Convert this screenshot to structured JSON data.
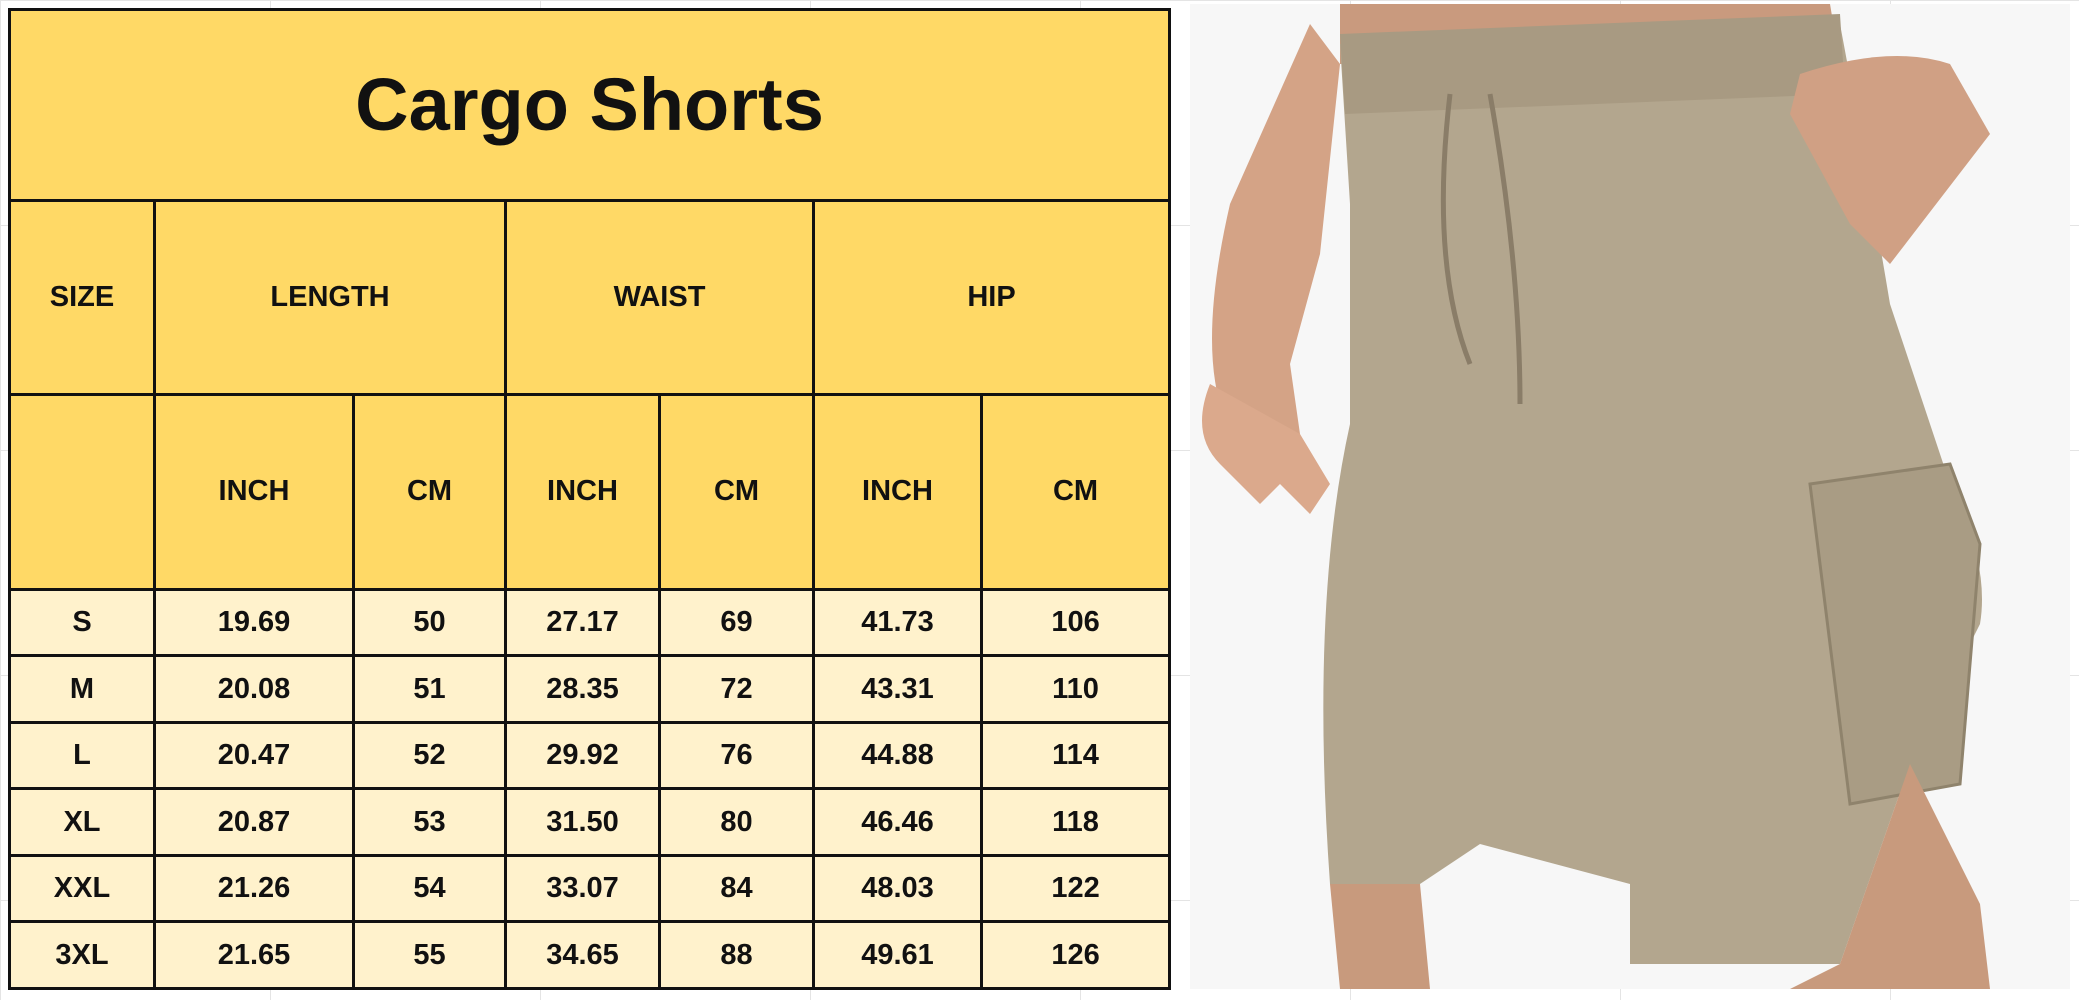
{
  "title": "Cargo Shorts",
  "headers": {
    "size": "SIZE",
    "groups": [
      "LENGTH",
      "WAIST",
      "HIP"
    ],
    "units": [
      "INCH",
      "CM",
      "INCH",
      "CM",
      "INCH",
      "CM"
    ]
  },
  "rows": [
    {
      "size": "S",
      "values": [
        "19.69",
        "50",
        "27.17",
        "69",
        "41.73",
        "106"
      ]
    },
    {
      "size": "M",
      "values": [
        "20.08",
        "51",
        "28.35",
        "72",
        "43.31",
        "110"
      ]
    },
    {
      "size": "L",
      "values": [
        "20.47",
        "52",
        "29.92",
        "76",
        "44.88",
        "114"
      ]
    },
    {
      "size": "XL",
      "values": [
        "20.87",
        "53",
        "31.50",
        "80",
        "46.46",
        "118"
      ]
    },
    {
      "size": "XXL",
      "values": [
        "21.26",
        "54",
        "33.07",
        "84",
        "48.03",
        "122"
      ]
    },
    {
      "size": "3XL",
      "values": [
        "21.65",
        "55",
        "34.65",
        "88",
        "49.61",
        "126"
      ]
    }
  ],
  "colors": {
    "header": "#FFD966",
    "body": "#FFF2CC",
    "shorts": "#B3A68E"
  }
}
